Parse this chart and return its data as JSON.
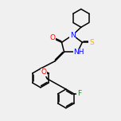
{
  "bg_color": "#f0f0f0",
  "bond_color": "#000000",
  "atom_colors": {
    "O": "#ff0000",
    "N": "#0000ff",
    "S": "#ffa500",
    "F": "#00aa00",
    "C": "#000000"
  },
  "line_width": 1.1,
  "font_size": 6.5
}
